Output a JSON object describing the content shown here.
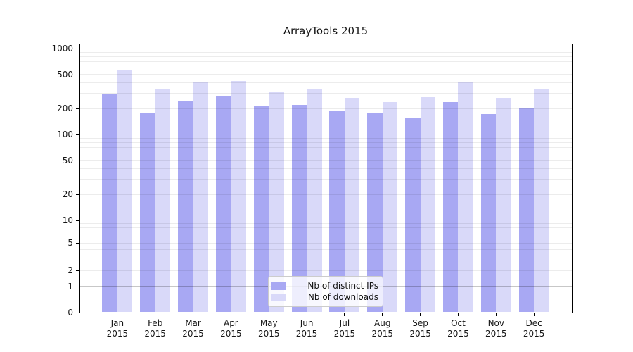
{
  "chart_data": {
    "type": "bar",
    "title": "ArrayTools 2015",
    "categories": [
      "Jan",
      "Feb",
      "Mar",
      "Apr",
      "May",
      "Jun",
      "Jul",
      "Aug",
      "Sep",
      "Oct",
      "Nov",
      "Dec"
    ],
    "category_year": "2015",
    "series": [
      {
        "name": "Nb of distinct IPs",
        "color": "#a8a8f3",
        "values": [
          295,
          180,
          247,
          278,
          213,
          220,
          188,
          175,
          155,
          240,
          173,
          204
        ]
      },
      {
        "name": "Nb of downloads",
        "color": "#d9d9f9",
        "values": [
          558,
          335,
          400,
          420,
          316,
          340,
          265,
          238,
          272,
          412,
          265,
          332
        ]
      }
    ],
    "y_ticks": [
      1000,
      500,
      200,
      100,
      50,
      20,
      10,
      5,
      2,
      1,
      0
    ],
    "y_scale": "symlog",
    "ylim": [
      0,
      1000
    ],
    "xlabel": "",
    "ylabel": "",
    "grid": true,
    "gridlines_over_bars": true,
    "legend_position": "lower center",
    "axis_color": "#000000",
    "background_color": "#ffffff"
  }
}
